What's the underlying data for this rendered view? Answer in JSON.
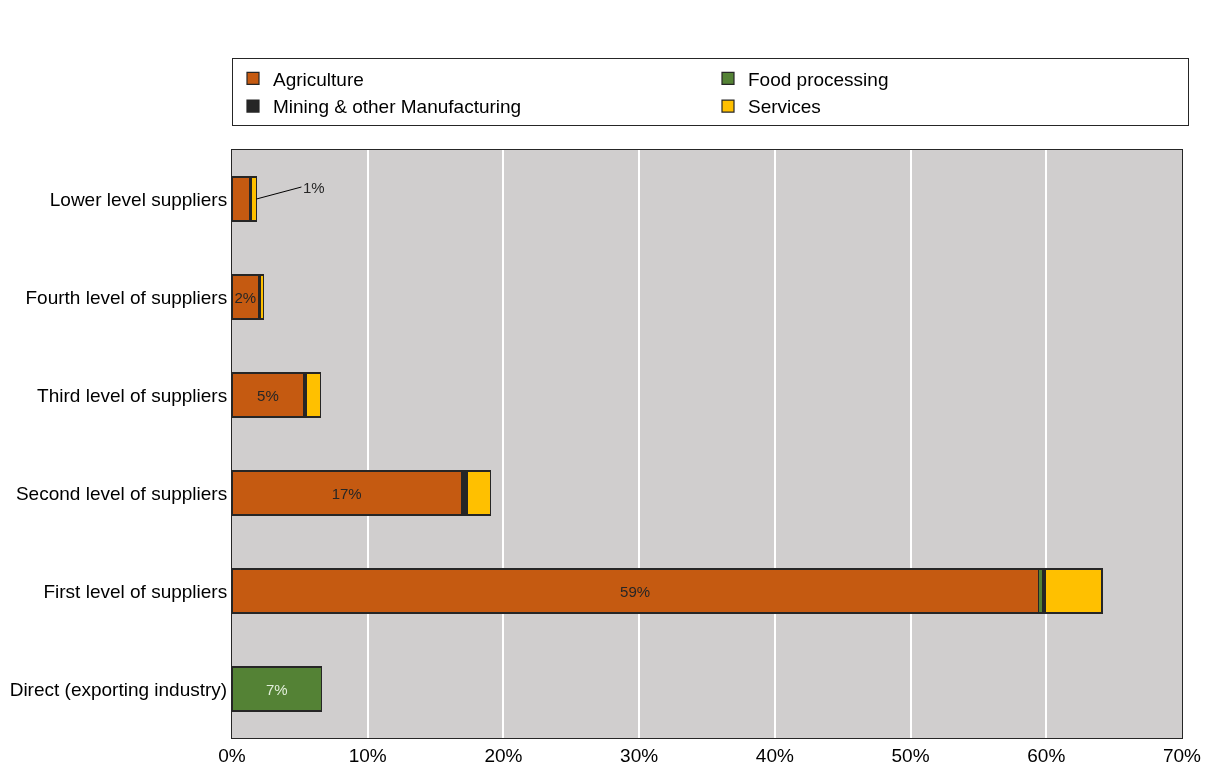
{
  "chart_data": {
    "type": "bar",
    "orientation": "horizontal",
    "stacked": true,
    "categories": [
      "Lower level suppliers",
      "Fourth level of suppliers",
      "Third level of suppliers",
      "Second level of suppliers",
      "First level of suppliers",
      "Direct (exporting industry)"
    ],
    "series": [
      {
        "name": "Agriculture",
        "color": "#c55a11",
        "values": [
          1.3,
          1.95,
          5.3,
          16.9,
          59.4,
          0
        ],
        "value_labels": [
          "1%",
          "2%",
          "5%",
          "17%",
          "59%",
          null
        ]
      },
      {
        "name": "Food processing",
        "color": "#548235",
        "values": [
          0,
          0,
          0,
          0,
          0.3,
          6.6
        ],
        "value_labels": [
          null,
          null,
          null,
          null,
          null,
          "7%"
        ]
      },
      {
        "name": "Mining & other Manufacturing",
        "color": "#262626",
        "values": [
          0.1,
          0.15,
          0.2,
          0.45,
          0.2,
          0
        ]
      },
      {
        "name": "Services",
        "color": "#ffc000",
        "values": [
          0.4,
          0.25,
          1.0,
          1.7,
          4.2,
          0
        ]
      }
    ],
    "xlim": [
      0,
      70
    ],
    "xticks": [
      {
        "value": 0,
        "label": "0%"
      },
      {
        "value": 10,
        "label": "10%"
      },
      {
        "value": 20,
        "label": "20%"
      },
      {
        "value": 30,
        "label": "30%"
      },
      {
        "value": 40,
        "label": "40%"
      },
      {
        "value": 50,
        "label": "50%"
      },
      {
        "value": 60,
        "label": "60%"
      },
      {
        "value": 70,
        "label": "70%"
      }
    ],
    "grid": "x",
    "legend": "top"
  }
}
